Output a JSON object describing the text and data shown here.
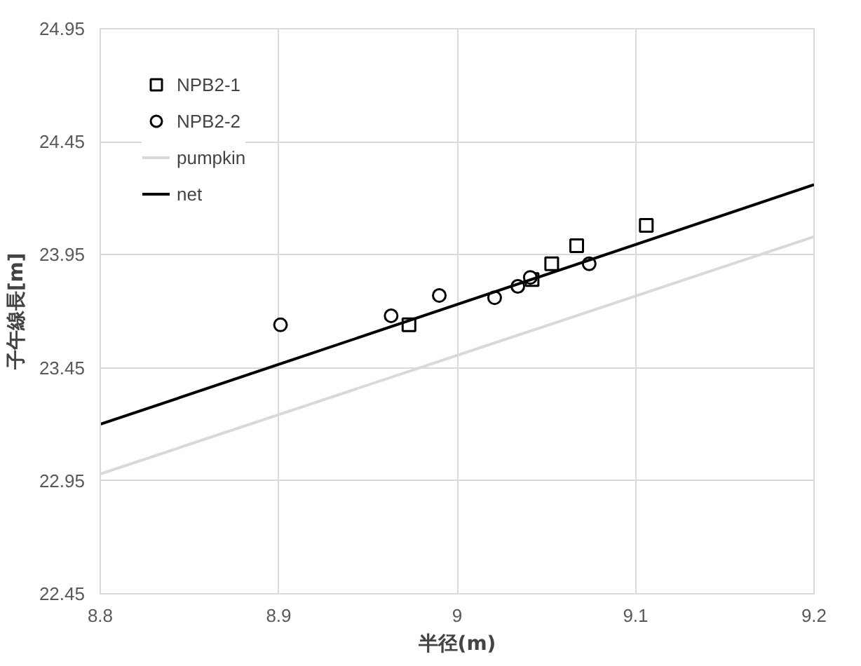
{
  "chart_data": {
    "type": "scatter",
    "xlabel": "半径(m)",
    "ylabel": "子午線長[m]",
    "xlim": [
      8.8,
      9.2
    ],
    "xticks": [
      8.8,
      8.9,
      {
        "value": 9,
        "label": "9"
      },
      9.1,
      9.2
    ],
    "ylim": [
      22.45,
      24.95
    ],
    "yticks": [
      22.45,
      22.95,
      23.45,
      23.95,
      24.45,
      24.95
    ],
    "grid": true,
    "legend": "top left",
    "series": [
      {
        "name": "NPB2-1",
        "marker": "square",
        "color": "#000000",
        "x": [
          8.973,
          9.042,
          9.053,
          9.067,
          9.106
        ],
        "values": [
          23.64,
          23.84,
          23.91,
          23.99,
          24.08
        ]
      },
      {
        "name": "NPB2-2",
        "marker": "circle",
        "color": "#000000",
        "x": [
          8.901,
          8.963,
          8.99,
          9.021,
          9.034,
          9.041,
          9.074
        ],
        "values": [
          23.64,
          23.68,
          23.77,
          23.76,
          23.81,
          23.85,
          23.91
        ]
      },
      {
        "name": "pumpkin",
        "type": "line",
        "marker": "none",
        "color": "#d9d9d9",
        "x": [
          8.8,
          9.2
        ],
        "values": [
          22.98,
          24.03
        ]
      },
      {
        "name": "net",
        "type": "line",
        "marker": "none",
        "color": "#000000",
        "x": [
          8.8,
          9.2
        ],
        "values": [
          23.2,
          24.26
        ]
      }
    ]
  }
}
